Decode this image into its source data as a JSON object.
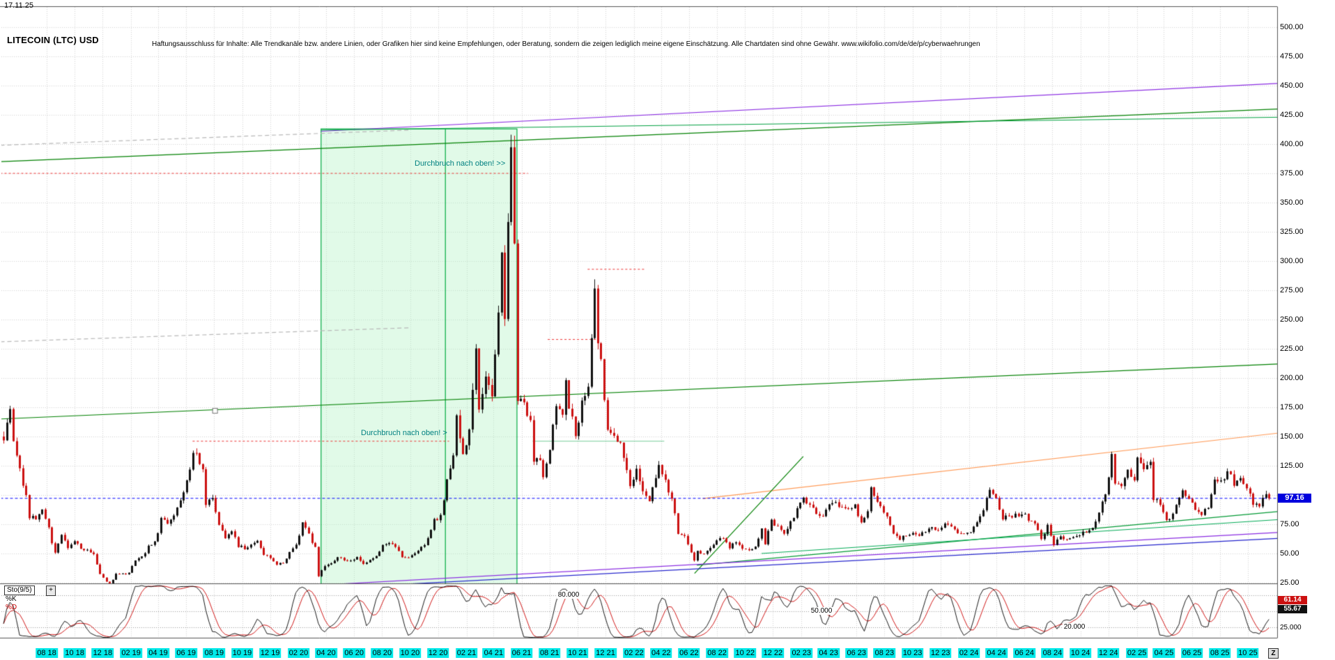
{
  "header": {
    "date": "17.11.25",
    "title": "LITECOIN (LTC) USD",
    "disclaimer": "Haftungsausschluss für Inhalte: Alle Trendkanäle bzw. andere Linien, oder Grafiken hier sind keine Empfehlungen, oder Beratung, sondern die zeigen lediglich meine eigene Einschätzung. Alle Chartdaten sind ohne Gewähr.  www.wikifolio.com/de/de/p/cyberwaehrungen"
  },
  "annotations": [
    {
      "text": "Durchbruch nach oben! >>",
      "date": "2020-10-12",
      "price": 382,
      "color": "#008080"
    },
    {
      "text": "Durchbruch nach oben! >",
      "date": "2020-06-16",
      "price": 152,
      "color": "#008080"
    }
  ],
  "indicator": {
    "label": "Sto(9/5)",
    "expand_label": "+",
    "k_label": "%K",
    "d_label": "%D",
    "d_value": "61.14",
    "k_value": "55.67",
    "axis_min_label": "25.000",
    "level_labels": [
      "80.000",
      "50.000",
      "20.000"
    ]
  },
  "footer": {
    "z_label": "Z"
  },
  "colors": {
    "up": "#111111",
    "down": "#cc1111",
    "grid": "#d4d4d4",
    "k_line": "#000000",
    "d_line": "#cc0000",
    "date_bg": "#00e9e9",
    "price_badge_bg": "#0000dd",
    "annotation": "#008080"
  },
  "chart_data": {
    "type": "candlestick",
    "title": "LITECOIN (LTC) USD",
    "symbol": "LTC/USD",
    "timeframe": "weekly",
    "last_price": 97.16,
    "last_price_label": "97.16",
    "y_axis": {
      "min": 25,
      "max": 500,
      "step": 25,
      "tick_labels": [
        "500.00",
        "475.00",
        "450.00",
        "425.00",
        "400.00",
        "375.00",
        "350.00",
        "325.00",
        "300.00",
        "275.00",
        "250.00",
        "225.00",
        "200.00",
        "175.00",
        "150.00",
        "125.00",
        "75.00",
        "50.00",
        "25.00"
      ]
    },
    "x_axis": {
      "labels": [
        "08 18",
        "10 18",
        "12 18",
        "02 19",
        "04 19",
        "06 19",
        "08 19",
        "10 19",
        "12 19",
        "02 20",
        "04 20",
        "06 20",
        "08 20",
        "10 20",
        "12 20",
        "02 21",
        "04 21",
        "06 21",
        "08 21",
        "10 21",
        "12 21",
        "02 22",
        "04 22",
        "06 22",
        "08 22",
        "10 22",
        "12 22",
        "02 23",
        "04 23",
        "06 23",
        "08 23",
        "10 23",
        "12 23",
        "02 24",
        "04 24",
        "06 24",
        "08 24",
        "10 24",
        "12 24",
        "02 25",
        "04 25",
        "06 25",
        "08 25",
        "10 25"
      ]
    },
    "anchors": [
      [
        "2018-04-29",
        150
      ],
      [
        "2018-05-06",
        162
      ],
      [
        "2018-05-13",
        170
      ],
      [
        "2018-05-20",
        145
      ],
      [
        "2018-06-03",
        121
      ],
      [
        "2018-06-17",
        98
      ],
      [
        "2018-06-24",
        82
      ],
      [
        "2018-07-08",
        80
      ],
      [
        "2018-07-22",
        88
      ],
      [
        "2018-08-05",
        72
      ],
      [
        "2018-08-12",
        60
      ],
      [
        "2018-08-19",
        52
      ],
      [
        "2018-09-02",
        66
      ],
      [
        "2018-09-16",
        55
      ],
      [
        "2018-09-30",
        61
      ],
      [
        "2018-10-14",
        54
      ],
      [
        "2018-10-28",
        52
      ],
      [
        "2018-11-11",
        50
      ],
      [
        "2018-11-25",
        33
      ],
      [
        "2018-12-09",
        26
      ],
      [
        "2018-12-16",
        24
      ],
      [
        "2018-12-30",
        32
      ],
      [
        "2019-01-13",
        33
      ],
      [
        "2019-01-27",
        33
      ],
      [
        "2019-02-10",
        44
      ],
      [
        "2019-02-24",
        47
      ],
      [
        "2019-03-10",
        56
      ],
      [
        "2019-03-24",
        59
      ],
      [
        "2019-04-07",
        79
      ],
      [
        "2019-04-21",
        75
      ],
      [
        "2019-05-05",
        82
      ],
      [
        "2019-05-19",
        95
      ],
      [
        "2019-06-02",
        112
      ],
      [
        "2019-06-16",
        134
      ],
      [
        "2019-06-23",
        136
      ],
      [
        "2019-07-07",
        120
      ],
      [
        "2019-07-14",
        92
      ],
      [
        "2019-07-28",
        96
      ],
      [
        "2019-08-11",
        75
      ],
      [
        "2019-08-25",
        64
      ],
      [
        "2019-09-08",
        70
      ],
      [
        "2019-09-22",
        56
      ],
      [
        "2019-10-06",
        55
      ],
      [
        "2019-10-20",
        58
      ],
      [
        "2019-11-03",
        62
      ],
      [
        "2019-11-17",
        50
      ],
      [
        "2019-12-01",
        46
      ],
      [
        "2019-12-15",
        40
      ],
      [
        "2019-12-29",
        42
      ],
      [
        "2020-01-12",
        51
      ],
      [
        "2020-01-26",
        58
      ],
      [
        "2020-02-09",
        75
      ],
      [
        "2020-02-23",
        66
      ],
      [
        "2020-03-08",
        55
      ],
      [
        "2020-03-15",
        31
      ],
      [
        "2020-03-29",
        39
      ],
      [
        "2020-04-12",
        42
      ],
      [
        "2020-04-26",
        47
      ],
      [
        "2020-05-10",
        44
      ],
      [
        "2020-05-24",
        45
      ],
      [
        "2020-06-07",
        46
      ],
      [
        "2020-06-21",
        42
      ],
      [
        "2020-07-05",
        44
      ],
      [
        "2020-07-19",
        47
      ],
      [
        "2020-08-02",
        56
      ],
      [
        "2020-08-16",
        60
      ],
      [
        "2020-08-30",
        55
      ],
      [
        "2020-09-13",
        48
      ],
      [
        "2020-09-27",
        46
      ],
      [
        "2020-10-11",
        49
      ],
      [
        "2020-10-25",
        55
      ],
      [
        "2020-11-08",
        62
      ],
      [
        "2020-11-22",
        78
      ],
      [
        "2020-12-06",
        82
      ],
      [
        "2020-12-20",
        112
      ],
      [
        "2021-01-03",
        137
      ],
      [
        "2021-01-10",
        170
      ],
      [
        "2021-01-24",
        132
      ],
      [
        "2021-02-07",
        160
      ],
      [
        "2021-02-21",
        225
      ],
      [
        "2021-02-28",
        172
      ],
      [
        "2021-03-14",
        202
      ],
      [
        "2021-03-28",
        182
      ],
      [
        "2021-04-11",
        256
      ],
      [
        "2021-04-18",
        315
      ],
      [
        "2021-04-25",
        252
      ],
      [
        "2021-05-02",
        330
      ],
      [
        "2021-05-09",
        398
      ],
      [
        "2021-05-16",
        310
      ],
      [
        "2021-05-23",
        182
      ],
      [
        "2021-06-06",
        178
      ],
      [
        "2021-06-20",
        162
      ],
      [
        "2021-06-27",
        131
      ],
      [
        "2021-07-11",
        128
      ],
      [
        "2021-07-18",
        118
      ],
      [
        "2021-08-01",
        142
      ],
      [
        "2021-08-15",
        178
      ],
      [
        "2021-08-29",
        172
      ],
      [
        "2021-09-05",
        200
      ],
      [
        "2021-09-12",
        178
      ],
      [
        "2021-09-26",
        152
      ],
      [
        "2021-10-10",
        178
      ],
      [
        "2021-10-24",
        192
      ],
      [
        "2021-11-07",
        282
      ],
      [
        "2021-11-14",
        232
      ],
      [
        "2021-11-21",
        212
      ],
      [
        "2021-12-05",
        157
      ],
      [
        "2021-12-19",
        148
      ],
      [
        "2022-01-02",
        145
      ],
      [
        "2022-01-09",
        131
      ],
      [
        "2022-01-23",
        106
      ],
      [
        "2022-02-06",
        121
      ],
      [
        "2022-02-20",
        101
      ],
      [
        "2022-03-06",
        96
      ],
      [
        "2022-03-27",
        124
      ],
      [
        "2022-04-03",
        118
      ],
      [
        "2022-04-17",
        103
      ],
      [
        "2022-04-24",
        98
      ],
      [
        "2022-05-08",
        67
      ],
      [
        "2022-05-22",
        64
      ],
      [
        "2022-06-12",
        44
      ],
      [
        "2022-06-19",
        51
      ],
      [
        "2022-07-03",
        50
      ],
      [
        "2022-07-17",
        56
      ],
      [
        "2022-07-31",
        61
      ],
      [
        "2022-08-14",
        63
      ],
      [
        "2022-08-28",
        54
      ],
      [
        "2022-09-11",
        61
      ],
      [
        "2022-09-25",
        53
      ],
      [
        "2022-10-09",
        52
      ],
      [
        "2022-10-23",
        56
      ],
      [
        "2022-11-06",
        70
      ],
      [
        "2022-11-13",
        59
      ],
      [
        "2022-11-27",
        77
      ],
      [
        "2022-12-11",
        74
      ],
      [
        "2022-12-25",
        66
      ],
      [
        "2023-01-08",
        76
      ],
      [
        "2023-01-22",
        88
      ],
      [
        "2023-02-05",
        98
      ],
      [
        "2023-02-19",
        92
      ],
      [
        "2023-03-05",
        84
      ],
      [
        "2023-03-19",
        81
      ],
      [
        "2023-04-02",
        91
      ],
      [
        "2023-04-16",
        96
      ],
      [
        "2023-04-30",
        88
      ],
      [
        "2023-05-14",
        86
      ],
      [
        "2023-05-28",
        91
      ],
      [
        "2023-06-11",
        76
      ],
      [
        "2023-06-25",
        86
      ],
      [
        "2023-07-02",
        108
      ],
      [
        "2023-07-09",
        97
      ],
      [
        "2023-07-23",
        91
      ],
      [
        "2023-08-06",
        83
      ],
      [
        "2023-08-20",
        66
      ],
      [
        "2023-09-03",
        63
      ],
      [
        "2023-09-17",
        66
      ],
      [
        "2023-10-01",
        67
      ],
      [
        "2023-10-15",
        64
      ],
      [
        "2023-10-29",
        69
      ],
      [
        "2023-11-12",
        73
      ],
      [
        "2023-11-26",
        70
      ],
      [
        "2023-12-10",
        76
      ],
      [
        "2023-12-24",
        72
      ],
      [
        "2024-01-07",
        67
      ],
      [
        "2024-01-21",
        66
      ],
      [
        "2024-02-04",
        69
      ],
      [
        "2024-02-18",
        78
      ],
      [
        "2024-03-03",
        88
      ],
      [
        "2024-03-17",
        105
      ],
      [
        "2024-03-31",
        98
      ],
      [
        "2024-04-14",
        79
      ],
      [
        "2024-04-28",
        83
      ],
      [
        "2024-05-12",
        82
      ],
      [
        "2024-05-26",
        85
      ],
      [
        "2024-06-09",
        80
      ],
      [
        "2024-06-23",
        74
      ],
      [
        "2024-07-07",
        63
      ],
      [
        "2024-07-21",
        73
      ],
      [
        "2024-08-04",
        58
      ],
      [
        "2024-08-18",
        66
      ],
      [
        "2024-09-01",
        61
      ],
      [
        "2024-09-15",
        63
      ],
      [
        "2024-09-29",
        67
      ],
      [
        "2024-10-13",
        68
      ],
      [
        "2024-10-27",
        71
      ],
      [
        "2024-11-10",
        87
      ],
      [
        "2024-11-24",
        102
      ],
      [
        "2024-12-08",
        133
      ],
      [
        "2024-12-15",
        112
      ],
      [
        "2024-12-29",
        106
      ],
      [
        "2025-01-12",
        119
      ],
      [
        "2025-01-26",
        114
      ],
      [
        "2025-02-02",
        129
      ],
      [
        "2025-02-16",
        125
      ],
      [
        "2025-03-02",
        128
      ],
      [
        "2025-03-09",
        96
      ],
      [
        "2025-03-23",
        93
      ],
      [
        "2025-04-06",
        79
      ],
      [
        "2025-04-20",
        83
      ],
      [
        "2025-05-04",
        98
      ],
      [
        "2025-05-11",
        103
      ],
      [
        "2025-05-25",
        96
      ],
      [
        "2025-06-08",
        88
      ],
      [
        "2025-06-22",
        83
      ],
      [
        "2025-07-06",
        89
      ],
      [
        "2025-07-20",
        116
      ],
      [
        "2025-08-03",
        111
      ],
      [
        "2025-08-17",
        121
      ],
      [
        "2025-08-31",
        110
      ],
      [
        "2025-09-14",
        116
      ],
      [
        "2025-09-28",
        106
      ],
      [
        "2025-10-05",
        100
      ],
      [
        "2025-10-12",
        92
      ],
      [
        "2025-10-26",
        89
      ],
      [
        "2025-11-09",
        103
      ],
      [
        "2025-11-16",
        97.16
      ]
    ],
    "overlays": {
      "box": {
        "d1": "2020-03-21",
        "p1": 413,
        "d2": "2021-05-22",
        "p2": 21,
        "divider": "2020-12-17",
        "fill": "rgba(170,240,190,0.35)",
        "stroke": "#00aa40"
      },
      "marker": {
        "d": "2019-08-03",
        "p": 172
      },
      "lines": [
        {
          "name": "violet-channel-top",
          "d1": "2020-03-21",
          "p1": 411,
          "d2": "2025-12-08",
          "p2": 452,
          "color": "#8a2be2",
          "w": 1.2
        },
        {
          "name": "green-channel-top",
          "d1": "2018-04-22",
          "p1": 385,
          "d2": "2025-12-08",
          "p2": 430,
          "color": "#008000",
          "w": 1.2
        },
        {
          "name": "green-box-top-ext",
          "d1": "2020-03-21",
          "p1": 412,
          "d2": "2025-12-08",
          "p2": 423,
          "color": "#00a040",
          "w": 1
        },
        {
          "name": "green-mid-support",
          "d1": "2018-04-22",
          "p1": 165,
          "d2": "2025-12-08",
          "p2": 212,
          "color": "#008000",
          "w": 1.2
        },
        {
          "name": "gray-dash-upper",
          "d1": "2018-04-22",
          "p1": 399,
          "d2": "2020-10-01",
          "p2": 412,
          "color": "#b8b8b8",
          "w": 1.2,
          "dash": [
            6,
            4
          ]
        },
        {
          "name": "gray-dash-mid",
          "d1": "2018-04-22",
          "p1": 231,
          "d2": "2020-10-01",
          "p2": 243,
          "color": "#b8b8b8",
          "w": 1.2,
          "dash": [
            6,
            4
          ]
        },
        {
          "name": "red-resistance-375",
          "d1": "2018-04-22",
          "p1": 375,
          "d2": "2021-06-15",
          "p2": 375,
          "color": "#ee3333",
          "w": 1,
          "dash": [
            3,
            3
          ]
        },
        {
          "name": "red-resistance-145",
          "d1": "2019-06-15",
          "p1": 146,
          "d2": "2020-12-25",
          "p2": 146,
          "color": "#ee3333",
          "w": 1,
          "dash": [
            3,
            3
          ]
        },
        {
          "name": "pale-green-level",
          "d1": "2021-06-25",
          "p1": 146,
          "d2": "2022-04-08",
          "p2": 146,
          "color": "#77cc99",
          "w": 1
        },
        {
          "name": "red-resistance-233",
          "d1": "2021-07-28",
          "p1": 233,
          "d2": "2021-11-10",
          "p2": 233,
          "color": "#ee3333",
          "w": 1,
          "dash": [
            3,
            3
          ]
        },
        {
          "name": "red-resistance-293",
          "d1": "2021-10-23",
          "p1": 293,
          "d2": "2022-02-24",
          "p2": 293,
          "color": "#ee3333",
          "w": 1,
          "dash": [
            3,
            3
          ]
        },
        {
          "name": "orange-trend",
          "d1": "2022-07-01",
          "p1": 97,
          "d2": "2025-12-08",
          "p2": 153,
          "color": "#ff9955",
          "w": 1.2
        },
        {
          "name": "green-lower-1",
          "d1": "2022-06-18",
          "p1": 40,
          "d2": "2025-12-08",
          "p2": 86,
          "color": "#009933",
          "w": 1.2
        },
        {
          "name": "green-lower-2",
          "d1": "2022-11-06",
          "p1": 50,
          "d2": "2025-12-08",
          "p2": 79,
          "color": "#00aa55",
          "w": 1
        },
        {
          "name": "green-steep",
          "d1": "2022-06-13",
          "p1": 33,
          "d2": "2023-02-05",
          "p2": 133,
          "color": "#008000",
          "w": 1.2
        },
        {
          "name": "violet-lower",
          "d1": "2020-03-21",
          "p1": 23,
          "d2": "2025-12-08",
          "p2": 68,
          "color": "#8a2be2",
          "w": 1.2
        },
        {
          "name": "blue-lower",
          "d1": "2020-03-21",
          "p1": 20,
          "d2": "2025-12-08",
          "p2": 63,
          "color": "#2222cc",
          "w": 1.2
        },
        {
          "name": "current-price-line",
          "d1": "2018-04-22",
          "p1": 97.16,
          "d2": "2025-12-08",
          "p2": 97.16,
          "color": "#0000ff",
          "w": 1,
          "dash": [
            4,
            3
          ]
        }
      ]
    },
    "indicator": {
      "name": "Sto(9/5)",
      "levels": [
        80,
        50,
        20
      ],
      "k": 55.67,
      "d": 61.14
    }
  }
}
